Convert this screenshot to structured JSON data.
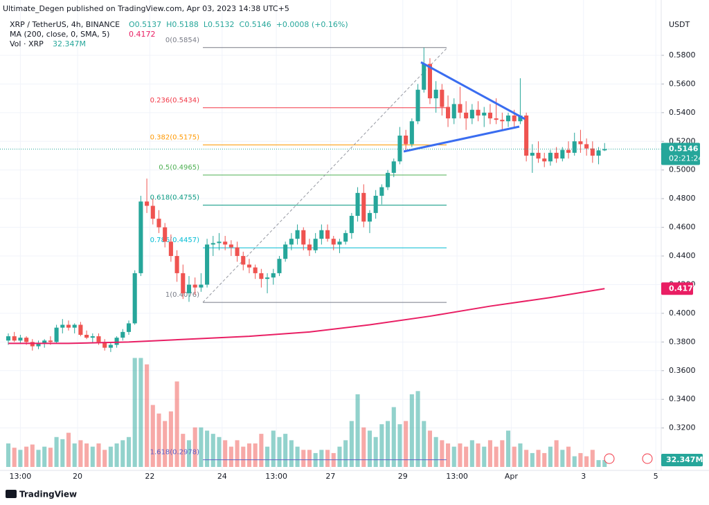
{
  "header": {
    "publisher": "Ultimate_Degen published on TradingView.com, Apr 03, 2023 14:38 UTC+5"
  },
  "footer": {
    "brand": "TradingView"
  },
  "chart_data": {
    "type": "candlestick",
    "symbol": "XRP / TetherUS, 4h, BINANCE",
    "ohlc": [
      "O0.5137",
      "H0.5188",
      "L0.5132",
      "C0.5146",
      "+0.0008 (+0.16%)"
    ],
    "ma_name": "MA (200, close, 0, SMA, 5)",
    "vol_name": "Vol · XRP",
    "volume_label": "32.347M",
    "countdown": "02:21:24",
    "currency": "USDT",
    "up_color": "#26a69a",
    "down_color": "#ef5350",
    "ylim": [
      0.2904,
      0.6186
    ],
    "xlim": [
      -1.38,
      108.4
    ],
    "volume_ylim": [
      0,
      560
    ],
    "yticks": [
      {
        "value": 0.58,
        "label": "0.5800"
      },
      {
        "value": 0.56,
        "label": "0.5600"
      },
      {
        "value": 0.54,
        "label": "0.5400"
      },
      {
        "value": 0.52,
        "label": "0.5200"
      },
      {
        "value": 0.5,
        "label": "0.5000"
      },
      {
        "value": 0.48,
        "label": "0.4800"
      },
      {
        "value": 0.46,
        "label": "0.4600"
      },
      {
        "value": 0.44,
        "label": "0.4400"
      },
      {
        "value": 0.42,
        "label": "0.4200"
      },
      {
        "value": 0.4,
        "label": "0.4000"
      },
      {
        "value": 0.38,
        "label": "0.3800"
      },
      {
        "value": 0.36,
        "label": "0.3600"
      },
      {
        "value": 0.34,
        "label": "0.3400"
      },
      {
        "value": 0.32,
        "label": "0.3200"
      }
    ],
    "xticks": [
      {
        "value": 2,
        "label": "13:00"
      },
      {
        "value": 11.5,
        "label": "20"
      },
      {
        "value": 23.5,
        "label": "22"
      },
      {
        "value": 35.5,
        "label": "24"
      },
      {
        "value": 44.5,
        "label": "13:00"
      },
      {
        "value": 53.5,
        "label": "27"
      },
      {
        "value": 65.5,
        "label": "29"
      },
      {
        "value": 74.5,
        "label": "13:00"
      },
      {
        "value": 83.5,
        "label": "Apr"
      },
      {
        "value": 95.5,
        "label": "3"
      },
      {
        "value": 107.5,
        "label": "5"
      }
    ],
    "candles": [
      [
        0.381,
        0.386,
        0.378,
        0.384
      ],
      [
        0.384,
        0.387,
        0.38,
        0.381
      ],
      [
        0.381,
        0.385,
        0.379,
        0.383
      ],
      [
        0.383,
        0.384,
        0.378,
        0.38
      ],
      [
        0.38,
        0.382,
        0.374,
        0.377
      ],
      [
        0.377,
        0.381,
        0.375,
        0.379
      ],
      [
        0.379,
        0.382,
        0.376,
        0.381
      ],
      [
        0.381,
        0.384,
        0.378,
        0.38
      ],
      [
        0.38,
        0.392,
        0.379,
        0.39
      ],
      [
        0.39,
        0.396,
        0.386,
        0.392
      ],
      [
        0.392,
        0.395,
        0.388,
        0.39
      ],
      [
        0.39,
        0.393,
        0.386,
        0.392
      ],
      [
        0.392,
        0.394,
        0.384,
        0.385
      ],
      [
        0.385,
        0.388,
        0.382,
        0.383
      ],
      [
        0.383,
        0.386,
        0.379,
        0.384
      ],
      [
        0.384,
        0.386,
        0.378,
        0.38
      ],
      [
        0.38,
        0.382,
        0.374,
        0.376
      ],
      [
        0.376,
        0.38,
        0.373,
        0.378
      ],
      [
        0.378,
        0.384,
        0.376,
        0.383
      ],
      [
        0.383,
        0.389,
        0.381,
        0.387
      ],
      [
        0.387,
        0.395,
        0.385,
        0.393
      ],
      [
        0.393,
        0.43,
        0.392,
        0.428
      ],
      [
        0.428,
        0.482,
        0.426,
        0.478
      ],
      [
        0.478,
        0.494,
        0.47,
        0.475
      ],
      [
        0.475,
        0.48,
        0.462,
        0.466
      ],
      [
        0.466,
        0.472,
        0.456,
        0.46
      ],
      [
        0.46,
        0.463,
        0.446,
        0.45
      ],
      [
        0.45,
        0.455,
        0.436,
        0.44
      ],
      [
        0.44,
        0.444,
        0.422,
        0.428
      ],
      [
        0.428,
        0.434,
        0.41,
        0.414
      ],
      [
        0.414,
        0.426,
        0.408,
        0.42
      ],
      [
        0.42,
        0.425,
        0.413,
        0.418
      ],
      [
        0.418,
        0.428,
        0.415,
        0.42
      ],
      [
        0.42,
        0.452,
        0.418,
        0.448
      ],
      [
        0.448,
        0.454,
        0.44,
        0.449
      ],
      [
        0.449,
        0.456,
        0.444,
        0.45
      ],
      [
        0.45,
        0.454,
        0.444,
        0.448
      ],
      [
        0.448,
        0.451,
        0.44,
        0.446
      ],
      [
        0.446,
        0.45,
        0.436,
        0.44
      ],
      [
        0.44,
        0.443,
        0.43,
        0.434
      ],
      [
        0.434,
        0.438,
        0.428,
        0.432
      ],
      [
        0.432,
        0.434,
        0.424,
        0.428
      ],
      [
        0.428,
        0.431,
        0.418,
        0.424
      ],
      [
        0.424,
        0.428,
        0.414,
        0.425
      ],
      [
        0.425,
        0.431,
        0.42,
        0.428
      ],
      [
        0.428,
        0.44,
        0.426,
        0.438
      ],
      [
        0.438,
        0.45,
        0.436,
        0.448
      ],
      [
        0.448,
        0.456,
        0.444,
        0.452
      ],
      [
        0.452,
        0.462,
        0.448,
        0.458
      ],
      [
        0.458,
        0.46,
        0.444,
        0.448
      ],
      [
        0.448,
        0.452,
        0.44,
        0.444
      ],
      [
        0.444,
        0.456,
        0.442,
        0.452
      ],
      [
        0.452,
        0.462,
        0.448,
        0.458
      ],
      [
        0.458,
        0.462,
        0.45,
        0.452
      ],
      [
        0.452,
        0.454,
        0.444,
        0.448
      ],
      [
        0.448,
        0.452,
        0.442,
        0.45
      ],
      [
        0.45,
        0.458,
        0.448,
        0.456
      ],
      [
        0.456,
        0.47,
        0.452,
        0.468
      ],
      [
        0.468,
        0.488,
        0.464,
        0.484
      ],
      [
        0.484,
        0.49,
        0.46,
        0.464
      ],
      [
        0.464,
        0.472,
        0.456,
        0.47
      ],
      [
        0.47,
        0.486,
        0.466,
        0.482
      ],
      [
        0.482,
        0.49,
        0.476,
        0.488
      ],
      [
        0.488,
        0.5,
        0.486,
        0.498
      ],
      [
        0.498,
        0.508,
        0.495,
        0.506
      ],
      [
        0.506,
        0.53,
        0.504,
        0.524
      ],
      [
        0.524,
        0.528,
        0.514,
        0.518
      ],
      [
        0.518,
        0.536,
        0.516,
        0.534
      ],
      [
        0.534,
        0.56,
        0.532,
        0.556
      ],
      [
        0.556,
        0.5854,
        0.554,
        0.574
      ],
      [
        0.574,
        0.578,
        0.546,
        0.55
      ],
      [
        0.55,
        0.562,
        0.54,
        0.556
      ],
      [
        0.556,
        0.56,
        0.538,
        0.544
      ],
      [
        0.544,
        0.552,
        0.53,
        0.536
      ],
      [
        0.536,
        0.55,
        0.532,
        0.546
      ],
      [
        0.546,
        0.558,
        0.536,
        0.54
      ],
      [
        0.54,
        0.548,
        0.528,
        0.536
      ],
      [
        0.536,
        0.546,
        0.532,
        0.542
      ],
      [
        0.542,
        0.548,
        0.534,
        0.538
      ],
      [
        0.538,
        0.544,
        0.53,
        0.54
      ],
      [
        0.54,
        0.546,
        0.532,
        0.536
      ],
      [
        0.536,
        0.55,
        0.532,
        0.535
      ],
      [
        0.535,
        0.54,
        0.528,
        0.534
      ],
      [
        0.534,
        0.54,
        0.53,
        0.538
      ],
      [
        0.538,
        0.542,
        0.53,
        0.534
      ],
      [
        0.534,
        0.564,
        0.532,
        0.538
      ],
      [
        0.538,
        0.54,
        0.506,
        0.51
      ],
      [
        0.51,
        0.518,
        0.498,
        0.512
      ],
      [
        0.512,
        0.52,
        0.505,
        0.508
      ],
      [
        0.508,
        0.512,
        0.502,
        0.506
      ],
      [
        0.506,
        0.514,
        0.503,
        0.512
      ],
      [
        0.512,
        0.516,
        0.505,
        0.508
      ],
      [
        0.508,
        0.516,
        0.506,
        0.514
      ],
      [
        0.514,
        0.52,
        0.508,
        0.512
      ],
      [
        0.512,
        0.526,
        0.51,
        0.52
      ],
      [
        0.52,
        0.528,
        0.512,
        0.518
      ],
      [
        0.518,
        0.522,
        0.51,
        0.515
      ],
      [
        0.515,
        0.52,
        0.505,
        0.51
      ],
      [
        0.51,
        0.516,
        0.504,
        0.5137
      ],
      [
        0.5137,
        0.5188,
        0.5132,
        0.5146
      ]
    ],
    "volume": [
      110,
      90,
      80,
      95,
      105,
      80,
      95,
      90,
      140,
      130,
      160,
      110,
      125,
      110,
      95,
      110,
      80,
      95,
      110,
      125,
      140,
      510,
      510,
      480,
      290,
      250,
      215,
      260,
      400,
      155,
      125,
      185,
      185,
      170,
      155,
      140,
      125,
      95,
      125,
      95,
      110,
      110,
      155,
      95,
      170,
      140,
      155,
      125,
      95,
      80,
      80,
      65,
      80,
      80,
      65,
      95,
      125,
      215,
      340,
      185,
      170,
      140,
      200,
      215,
      280,
      200,
      215,
      340,
      355,
      215,
      170,
      140,
      125,
      110,
      95,
      110,
      95,
      125,
      110,
      95,
      125,
      95,
      125,
      170,
      95,
      110,
      80,
      65,
      80,
      65,
      95,
      125,
      80,
      95,
      50,
      65,
      50,
      80,
      32,
      32.347
    ],
    "ma": {
      "color": "#e91e63",
      "x": [
        0,
        10,
        20,
        30,
        40,
        50,
        60,
        70,
        80,
        90,
        99
      ],
      "values": [
        0.379,
        0.379,
        0.38,
        0.382,
        0.384,
        0.387,
        0.392,
        0.398,
        0.405,
        0.411,
        0.4172
      ]
    },
    "fib": [
      {
        "label": "0(0.5854)",
        "value": 0.5854,
        "color": "#787b86"
      },
      {
        "label": "0.236(0.5434)",
        "value": 0.5434,
        "color": "#f23645"
      },
      {
        "label": "0.382(0.5175)",
        "value": 0.5175,
        "color": "#ff9800"
      },
      {
        "label": "0.5(0.4965)",
        "value": 0.4965,
        "color": "#4caf50"
      },
      {
        "label": "0.618(0.4755)",
        "value": 0.4755,
        "color": "#089981"
      },
      {
        "label": "0.786(0.4457)",
        "value": 0.4457,
        "color": "#00bcd4"
      },
      {
        "label": "1(0.4076)",
        "value": 0.4076,
        "color": "#787b86"
      },
      {
        "label": "1.618(0.2978)",
        "value": 0.2978,
        "color": "#5b5fc7"
      }
    ]
  }
}
